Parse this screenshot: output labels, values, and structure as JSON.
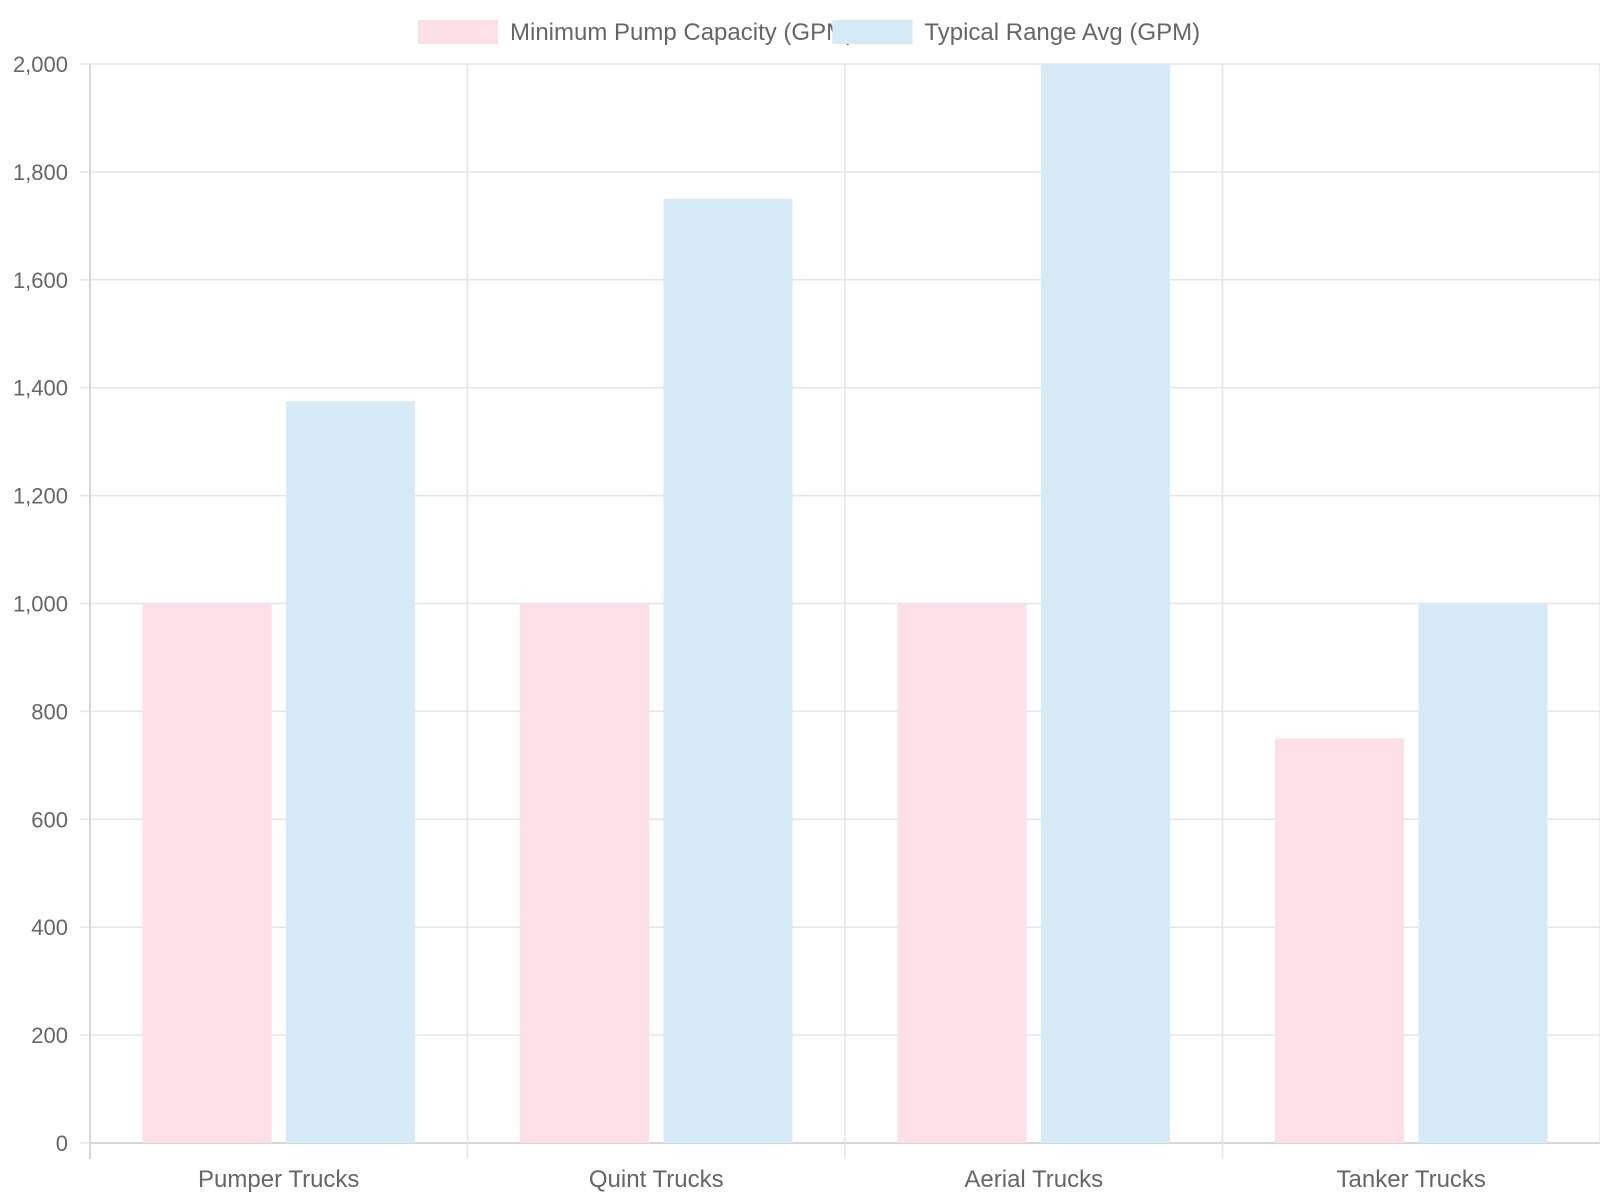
{
  "chart_data": {
    "type": "bar",
    "categories": [
      "Pumper Trucks",
      "Quint Trucks",
      "Aerial Trucks",
      "Tanker Trucks"
    ],
    "series": [
      {
        "name": "Minimum Pump Capacity (GPM)",
        "values": [
          1000,
          1000,
          1000,
          750
        ],
        "color": "#fde0e6"
      },
      {
        "name": "Typical Range Avg (GPM)",
        "values": [
          1375,
          1750,
          2000,
          1000
        ],
        "color": "#d6eaf8"
      }
    ],
    "ylim": [
      0,
      2000
    ],
    "yticks": [
      0,
      200,
      400,
      600,
      800,
      1000,
      1200,
      1400,
      1600,
      1800,
      2000
    ],
    "ytick_labels": [
      "0",
      "200",
      "400",
      "600",
      "800",
      "1,000",
      "1,200",
      "1,400",
      "1,600",
      "1,800",
      "2,000"
    ],
    "title": "",
    "xlabel": "",
    "ylabel": "",
    "grid": true,
    "legend_position": "top-center",
    "grid_color": "#e5e5e5",
    "axis_color": "#c8c8c8",
    "text_color": "#666666"
  }
}
